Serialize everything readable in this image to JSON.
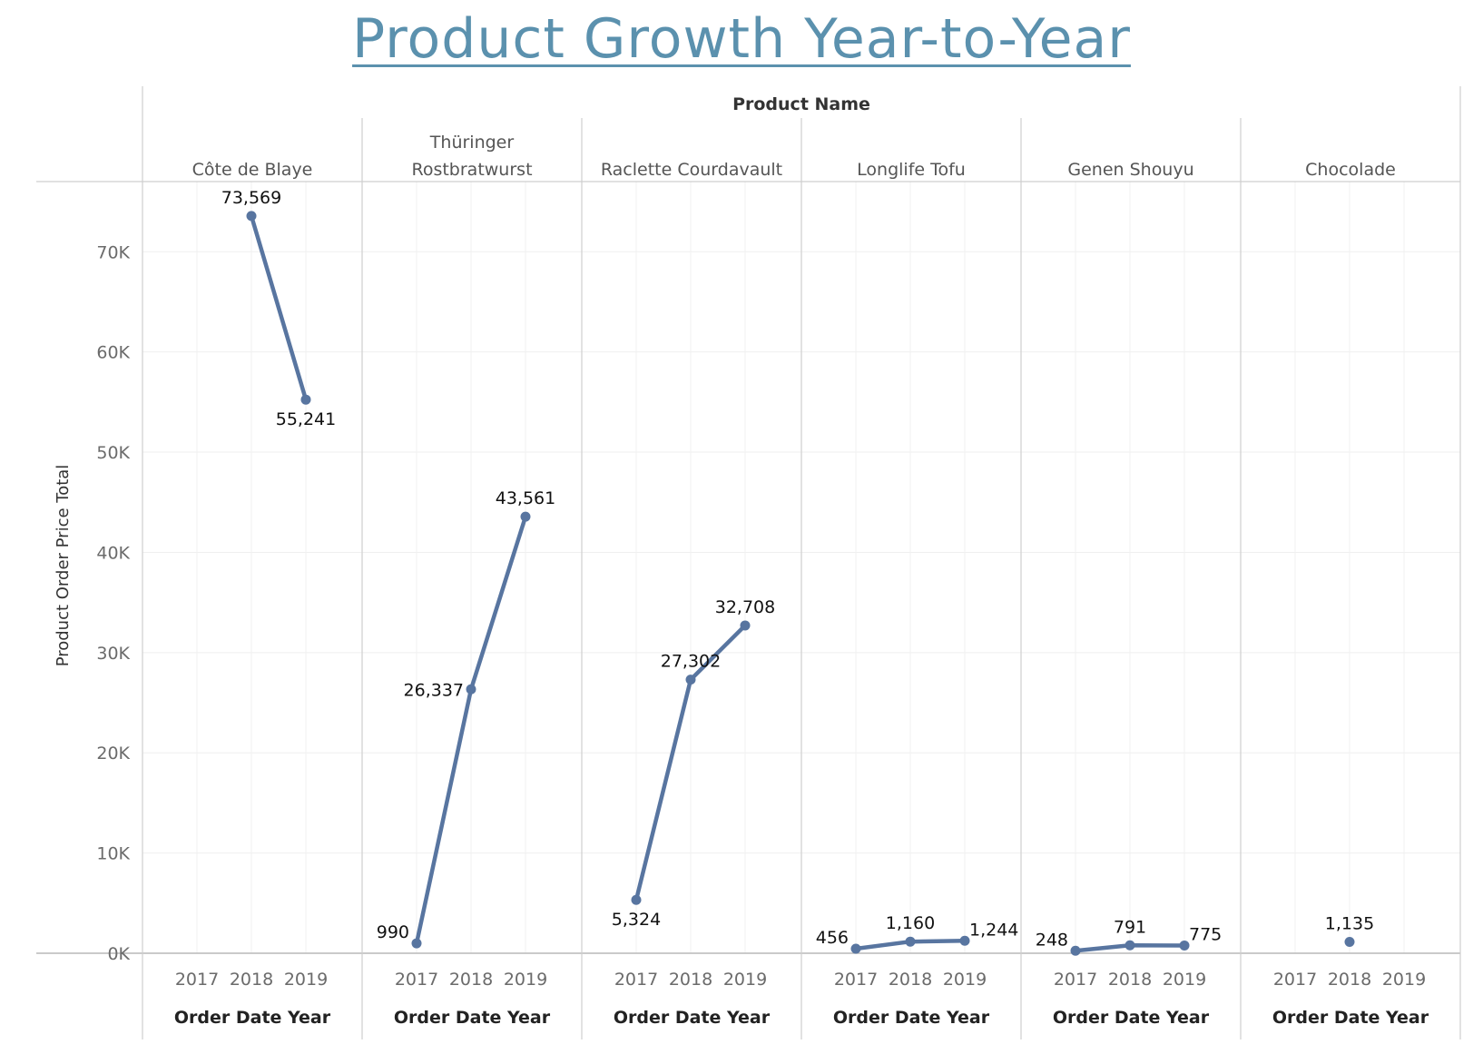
{
  "title": "Product Growth Year-to-Year",
  "chart_data": {
    "type": "line",
    "title": "Product Growth Year-to-Year",
    "column_header": "Product Name",
    "ylabel": "Product Order Price Total",
    "xlabel": "Order Date Year",
    "ylim": [
      0,
      77000
    ],
    "y_ticks": [
      0,
      10000,
      20000,
      30000,
      40000,
      50000,
      60000,
      70000
    ],
    "y_tick_labels": [
      "0K",
      "10K",
      "20K",
      "30K",
      "40K",
      "50K",
      "60K",
      "70K"
    ],
    "x_categories": [
      "2017",
      "2018",
      "2019"
    ],
    "grid": true,
    "line_color": "#5875a0",
    "panels": [
      {
        "name": "Côte de Blaye",
        "name_lines": [
          "Côte de Blaye"
        ],
        "points": [
          {
            "x": "2018",
            "y": 73569,
            "label": "73,569"
          },
          {
            "x": "2019",
            "y": 55241,
            "label": "55,241"
          }
        ]
      },
      {
        "name": "Thüringer Rostbratwurst",
        "name_lines": [
          "Thüringer",
          "Rostbratwurst"
        ],
        "points": [
          {
            "x": "2017",
            "y": 990,
            "label": "990"
          },
          {
            "x": "2018",
            "y": 26337,
            "label": "26,337"
          },
          {
            "x": "2019",
            "y": 43561,
            "label": "43,561"
          }
        ]
      },
      {
        "name": "Raclette Courdavault",
        "name_lines": [
          "Raclette Courdavault"
        ],
        "points": [
          {
            "x": "2017",
            "y": 5324,
            "label": "5,324"
          },
          {
            "x": "2018",
            "y": 27302,
            "label": "27,302"
          },
          {
            "x": "2019",
            "y": 32708,
            "label": "32,708"
          }
        ]
      },
      {
        "name": "Longlife Tofu",
        "name_lines": [
          "Longlife Tofu"
        ],
        "points": [
          {
            "x": "2017",
            "y": 456,
            "label": "456"
          },
          {
            "x": "2018",
            "y": 1160,
            "label": "1,160"
          },
          {
            "x": "2019",
            "y": 1244,
            "label": "1,244"
          }
        ]
      },
      {
        "name": "Genen Shouyu",
        "name_lines": [
          "Genen Shouyu"
        ],
        "points": [
          {
            "x": "2017",
            "y": 248,
            "label": "248"
          },
          {
            "x": "2018",
            "y": 791,
            "label": "791"
          },
          {
            "x": "2019",
            "y": 775,
            "label": "775"
          }
        ]
      },
      {
        "name": "Chocolade",
        "name_lines": [
          "Chocolade"
        ],
        "points": [
          {
            "x": "2018",
            "y": 1135,
            "label": "1,135"
          }
        ]
      }
    ]
  }
}
